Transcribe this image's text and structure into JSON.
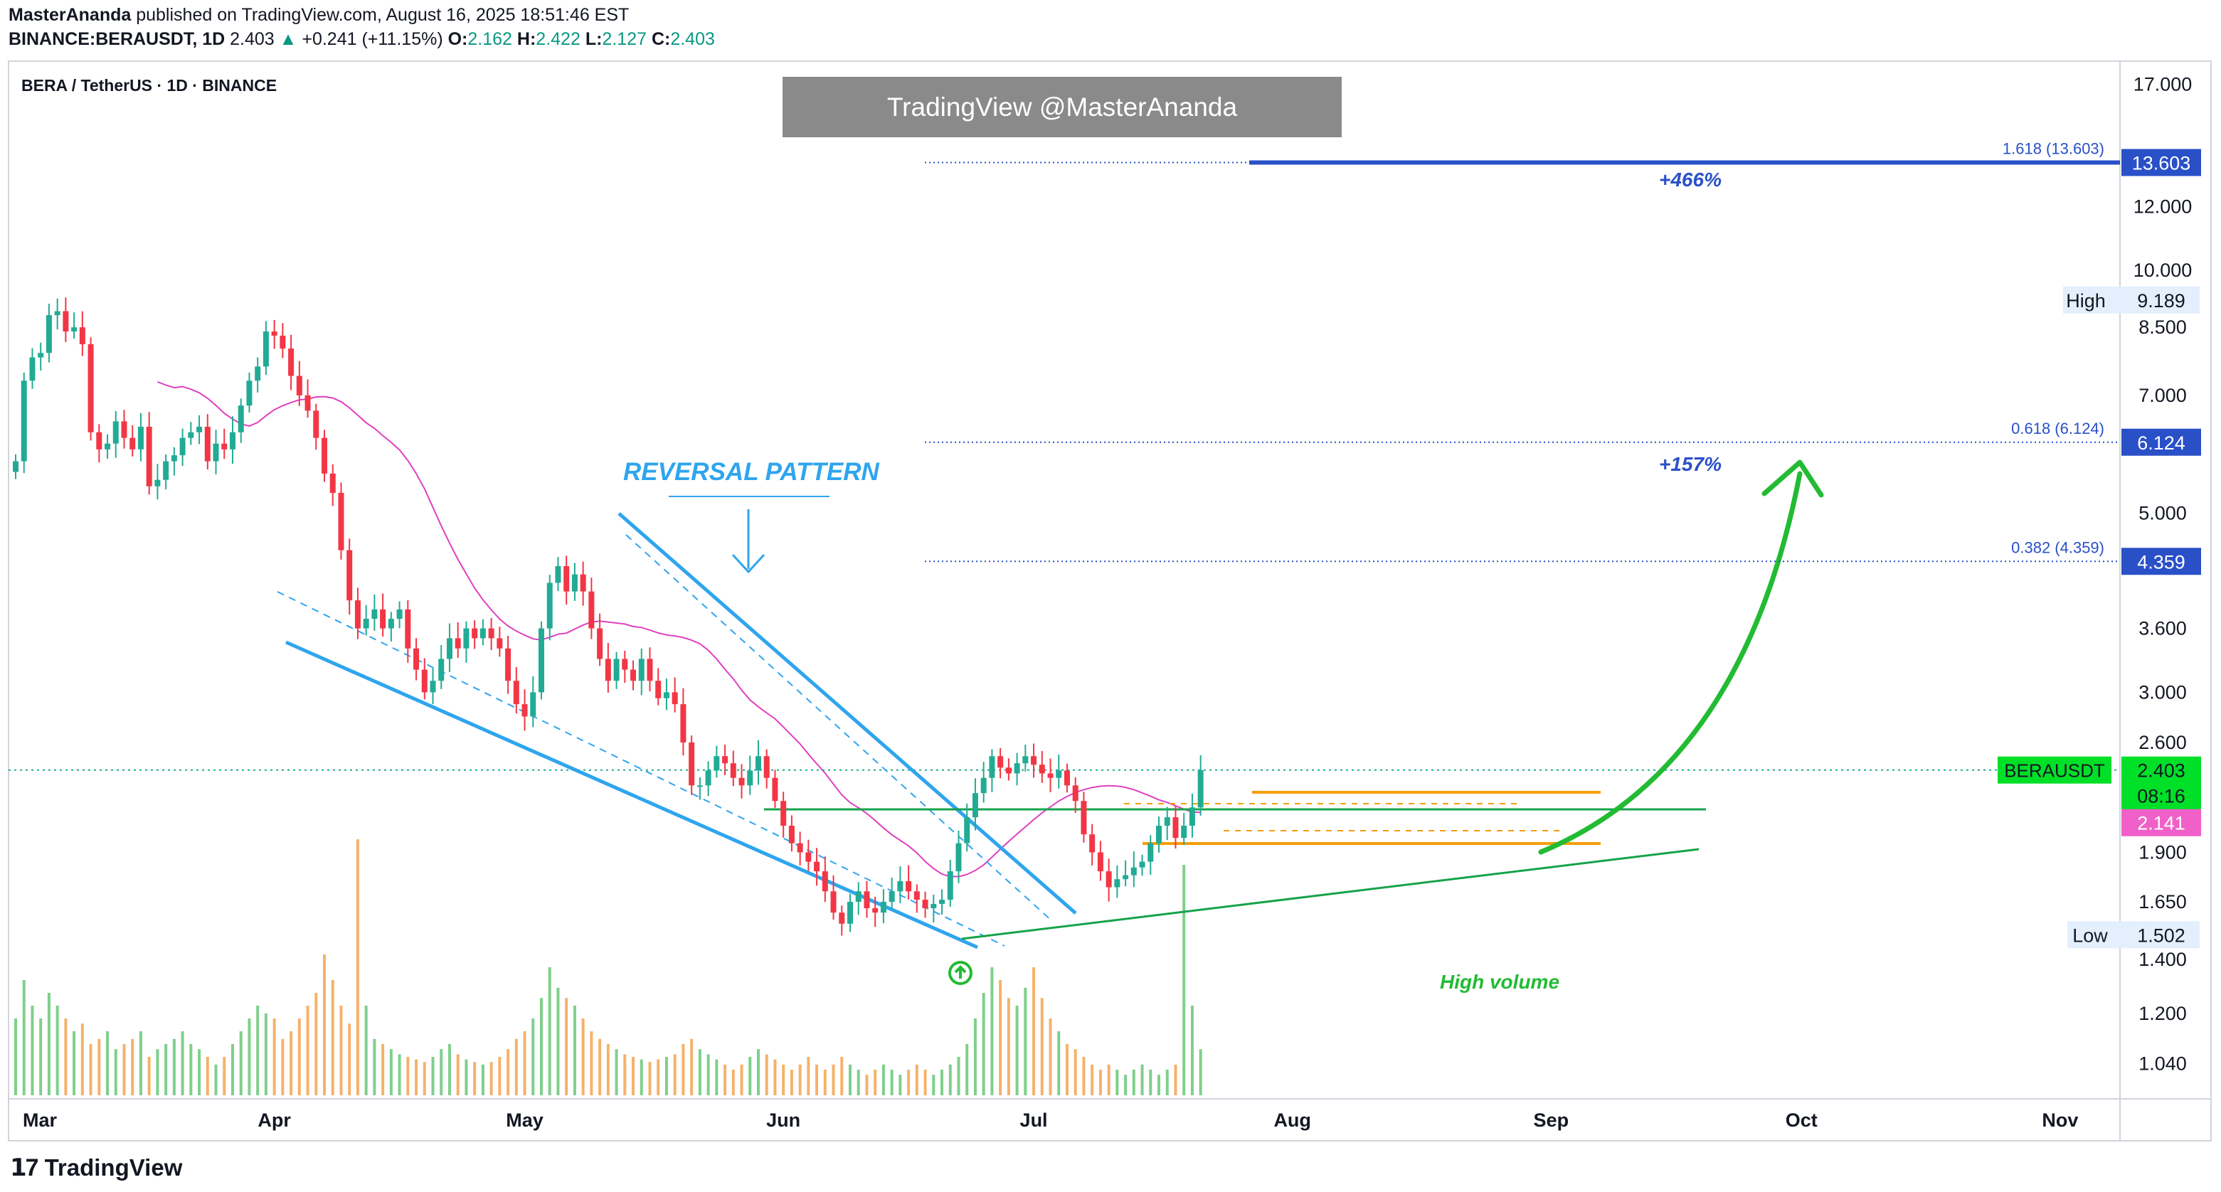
{
  "header": {
    "author": "MasterAnanda",
    "published": "published on TradingView.com, August 16, 2025 18:51:46 EST",
    "symbol": "BINANCE:BERAUSDT, 1D",
    "last": "2.403",
    "change": "+0.241 (+11.15%)",
    "o_label": "O:",
    "o": "2.162",
    "h_label": "H:",
    "h": "2.422",
    "l_label": "L:",
    "l": "2.127",
    "c_label": "C:",
    "c": "2.403"
  },
  "pane_title": "BERA / TetherUS · 1D · BINANCE",
  "watermark": "TradingView @MasterAnanda",
  "footer": {
    "brand": "TradingView"
  },
  "colors": {
    "up": "#22ab94",
    "down": "#f23645",
    "ma": "#e040c0",
    "wedge": "#2fa5ee",
    "fib": "#2a50c8",
    "orange": "#f59e0b",
    "green_line": "#16a34a",
    "arrow": "#22bb33",
    "vol_up": "#7fcf8c",
    "vol_down": "#f5b26b"
  },
  "chart_data": {
    "type": "candlestick",
    "title": "BERA / TetherUS · 1D · BINANCE",
    "y_scale": "log",
    "ylim": [
      0.95,
      17.8
    ],
    "price_ticks": [
      "17.000",
      "12.000",
      "10.000",
      "8.500",
      "7.000",
      "5.000",
      "3.600",
      "3.000",
      "2.600",
      "1.900",
      "1.650",
      "1.400",
      "1.200",
      "1.040"
    ],
    "x_ticks": [
      "Mar",
      "Apr",
      "May",
      "Jun",
      "Jul",
      "Aug",
      "Sep",
      "Oct",
      "Nov"
    ],
    "month_start_days": [
      0,
      31,
      61,
      92,
      122,
      153,
      184,
      214,
      245
    ],
    "last_day": 168,
    "annotations": {
      "reversal_label": "REVERSAL PATTERN",
      "high_volume_label": "High volume",
      "pct_466": "+466%",
      "pct_157": "+157%"
    },
    "fib_levels": [
      {
        "label": "1.618 (13.603)",
        "value": 13.603,
        "tag": "13.603"
      },
      {
        "label": "0.618 (6.124)",
        "value": 6.124,
        "tag": "6.124"
      },
      {
        "label": "0.382 (4.359)",
        "value": 4.359,
        "tag": "4.359"
      }
    ],
    "high": {
      "label": "High",
      "value": "9.189"
    },
    "low": {
      "label": "Low",
      "value": "1.502"
    },
    "current": {
      "symbol": "BERAUSDT",
      "price": "2.403",
      "countdown": "08:16"
    },
    "ma_price": "2.141",
    "close": [
      5.8,
      7.3,
      7.8,
      7.9,
      8.8,
      8.9,
      8.4,
      8.5,
      8.1,
      6.3,
      6.0,
      6.1,
      6.5,
      6.2,
      6.0,
      6.4,
      5.4,
      5.5,
      5.8,
      5.9,
      6.2,
      6.3,
      6.4,
      5.8,
      6.1,
      6.0,
      6.3,
      6.8,
      7.3,
      7.6,
      8.4,
      8.3,
      8.0,
      7.4,
      7.0,
      6.7,
      6.2,
      5.6,
      5.3,
      4.5,
      3.9,
      3.6,
      3.7,
      3.8,
      3.6,
      3.7,
      3.8,
      3.4,
      3.2,
      3.0,
      3.1,
      3.3,
      3.5,
      3.4,
      3.6,
      3.5,
      3.6,
      3.5,
      3.4,
      3.1,
      2.9,
      2.8,
      3.0,
      3.6,
      4.1,
      4.3,
      4.0,
      4.2,
      4.0,
      3.6,
      3.3,
      3.1,
      3.3,
      3.2,
      3.1,
      3.3,
      3.1,
      2.95,
      3.0,
      2.9,
      2.6,
      2.3,
      2.3,
      2.4,
      2.5,
      2.45,
      2.35,
      2.3,
      2.4,
      2.5,
      2.35,
      2.2,
      2.05,
      1.95,
      1.9,
      1.85,
      1.8,
      1.7,
      1.6,
      1.55,
      1.65,
      1.7,
      1.62,
      1.6,
      1.65,
      1.7,
      1.75,
      1.7,
      1.66,
      1.62,
      1.64,
      1.66,
      1.8,
      1.95,
      2.1,
      2.25,
      2.35,
      2.5,
      2.42,
      2.38,
      2.45,
      2.5,
      2.44,
      2.38,
      2.35,
      2.4,
      2.3,
      2.2,
      2.0,
      1.9,
      1.8,
      1.72,
      1.76,
      1.78,
      1.82,
      1.85,
      1.95,
      2.05,
      2.1,
      1.98,
      2.05,
      2.16,
      2.403
    ],
    "volume": [
      0.3,
      0.45,
      0.35,
      0.3,
      0.4,
      0.35,
      0.3,
      0.25,
      0.28,
      0.2,
      0.22,
      0.25,
      0.18,
      0.2,
      0.22,
      0.25,
      0.15,
      0.18,
      0.2,
      0.22,
      0.25,
      0.2,
      0.18,
      0.15,
      0.12,
      0.15,
      0.2,
      0.25,
      0.3,
      0.35,
      0.32,
      0.3,
      0.22,
      0.25,
      0.3,
      0.35,
      0.4,
      0.55,
      0.45,
      0.35,
      0.28,
      1.0,
      0.35,
      0.22,
      0.2,
      0.18,
      0.16,
      0.15,
      0.14,
      0.13,
      0.15,
      0.18,
      0.2,
      0.16,
      0.14,
      0.13,
      0.12,
      0.13,
      0.15,
      0.18,
      0.22,
      0.25,
      0.3,
      0.38,
      0.5,
      0.42,
      0.38,
      0.35,
      0.3,
      0.25,
      0.22,
      0.2,
      0.18,
      0.16,
      0.15,
      0.14,
      0.13,
      0.14,
      0.15,
      0.16,
      0.2,
      0.22,
      0.18,
      0.16,
      0.14,
      0.12,
      0.1,
      0.12,
      0.15,
      0.18,
      0.16,
      0.14,
      0.12,
      0.1,
      0.12,
      0.15,
      0.12,
      0.1,
      0.12,
      0.15,
      0.12,
      0.1,
      0.08,
      0.1,
      0.12,
      0.1,
      0.08,
      0.1,
      0.12,
      0.1,
      0.08,
      0.1,
      0.12,
      0.15,
      0.2,
      0.3,
      0.4,
      0.5,
      0.45,
      0.38,
      0.35,
      0.42,
      0.5,
      0.38,
      0.3,
      0.25,
      0.2,
      0.18,
      0.15,
      0.12,
      0.1,
      0.12,
      0.1,
      0.08,
      0.1,
      0.12,
      0.1,
      0.08,
      0.1,
      0.12,
      0.9,
      0.35,
      0.18
    ]
  }
}
